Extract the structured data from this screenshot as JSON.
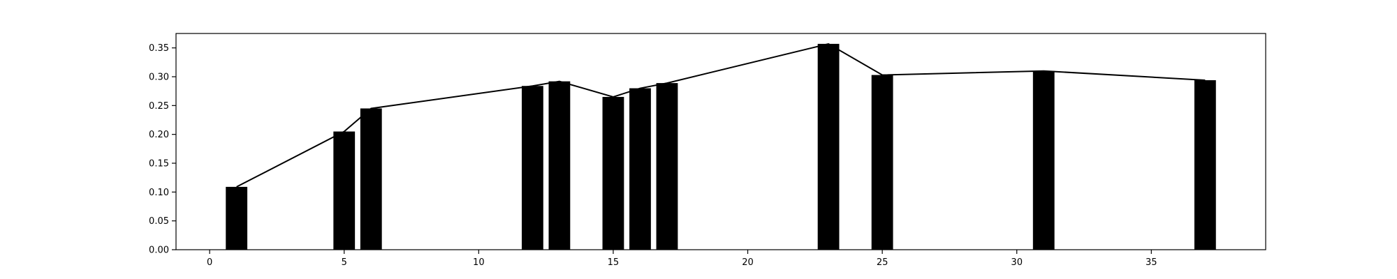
{
  "chart_data": {
    "type": "bar",
    "title": "",
    "xlabel": "",
    "ylabel": "",
    "xlim": [
      -1.25,
      39.25
    ],
    "ylim": [
      0,
      0.375
    ],
    "grid": false,
    "x": [
      1,
      5,
      6,
      12,
      13,
      15,
      16,
      17,
      23,
      25,
      31,
      37
    ],
    "values": [
      0.109,
      0.205,
      0.245,
      0.284,
      0.292,
      0.265,
      0.28,
      0.289,
      0.357,
      0.303,
      0.31,
      0.294
    ],
    "line_values": [
      0.109,
      0.205,
      0.245,
      0.284,
      0.292,
      0.265,
      0.28,
      0.289,
      0.357,
      0.303,
      0.31,
      0.294
    ],
    "bar_width": 0.8,
    "colors": {
      "bar": "#000000",
      "line": "#000000"
    },
    "x_ticks": [
      0,
      5,
      10,
      15,
      20,
      25,
      30,
      35
    ],
    "x_tick_labels": [
      "0",
      "5",
      "10",
      "15",
      "20",
      "25",
      "30",
      "35"
    ],
    "y_ticks": [
      0,
      0.05,
      0.1,
      0.15,
      0.2,
      0.25,
      0.3,
      0.35
    ],
    "y_tick_labels": [
      "0.00",
      "0.05",
      "0.10",
      "0.15",
      "0.20",
      "0.25",
      "0.30",
      "0.35"
    ]
  }
}
